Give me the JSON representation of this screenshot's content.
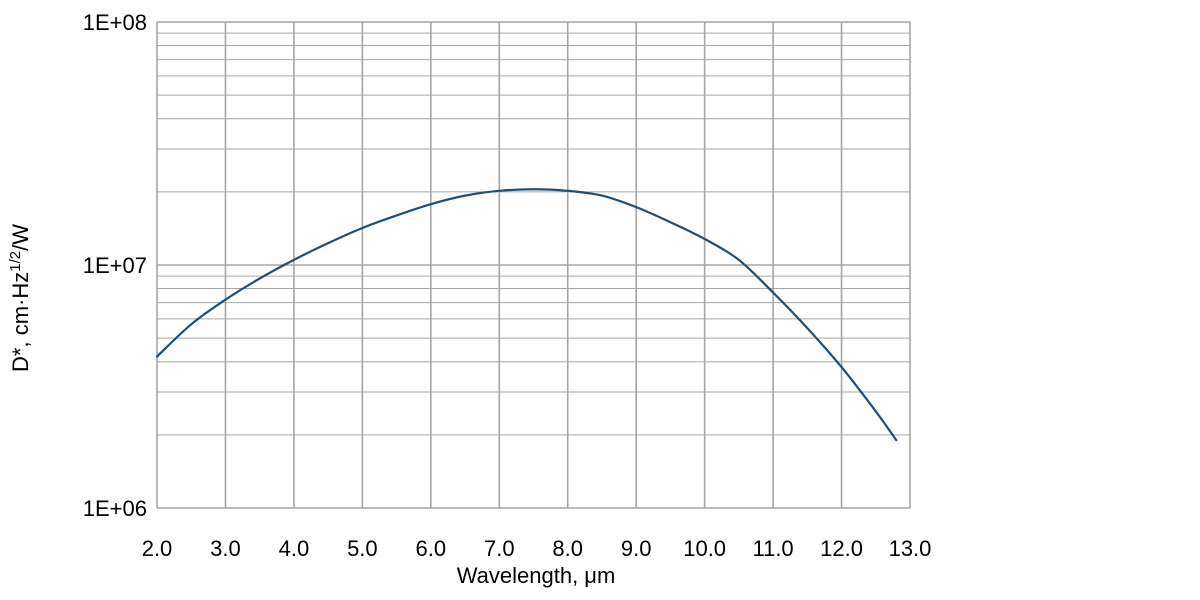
{
  "chart_data": {
    "type": "line",
    "title": "",
    "xlabel": "Wavelength, μm",
    "ylabel": "D*, cm·Hz",
    "ylabel_sup": "1/2",
    "ylabel_tail": "/W",
    "xlim": [
      2.0,
      13.0
    ],
    "ylim": [
      1000000,
      100000000
    ],
    "yscale": "log",
    "grid": true,
    "x_ticks": [
      "2.0",
      "3.0",
      "4.0",
      "5.0",
      "6.0",
      "7.0",
      "8.0",
      "9.0",
      "10.0",
      "11.0",
      "12.0",
      "13.0"
    ],
    "y_ticks": [
      "1E+06",
      "1E+07",
      "1E+08"
    ],
    "line_color": "#1f4e79",
    "grid_color": "#a6a6a6",
    "series": [
      {
        "x": [
          2.0,
          2.5,
          3.0,
          3.5,
          4.0,
          4.5,
          5.0,
          5.5,
          6.0,
          6.5,
          7.0,
          7.5,
          8.0,
          8.5,
          9.0,
          9.5,
          10.0,
          10.5,
          11.0,
          11.5,
          12.0,
          12.5,
          12.8
        ],
        "y": [
          4200000,
          5700000,
          7200000,
          8800000,
          10500000,
          12300000,
          14200000,
          16000000,
          17800000,
          19300000,
          20200000,
          20500000,
          20200000,
          19300000,
          17300000,
          15000000,
          12800000,
          10500000,
          7700000,
          5500000,
          3800000,
          2500000,
          1900000
        ]
      }
    ]
  }
}
